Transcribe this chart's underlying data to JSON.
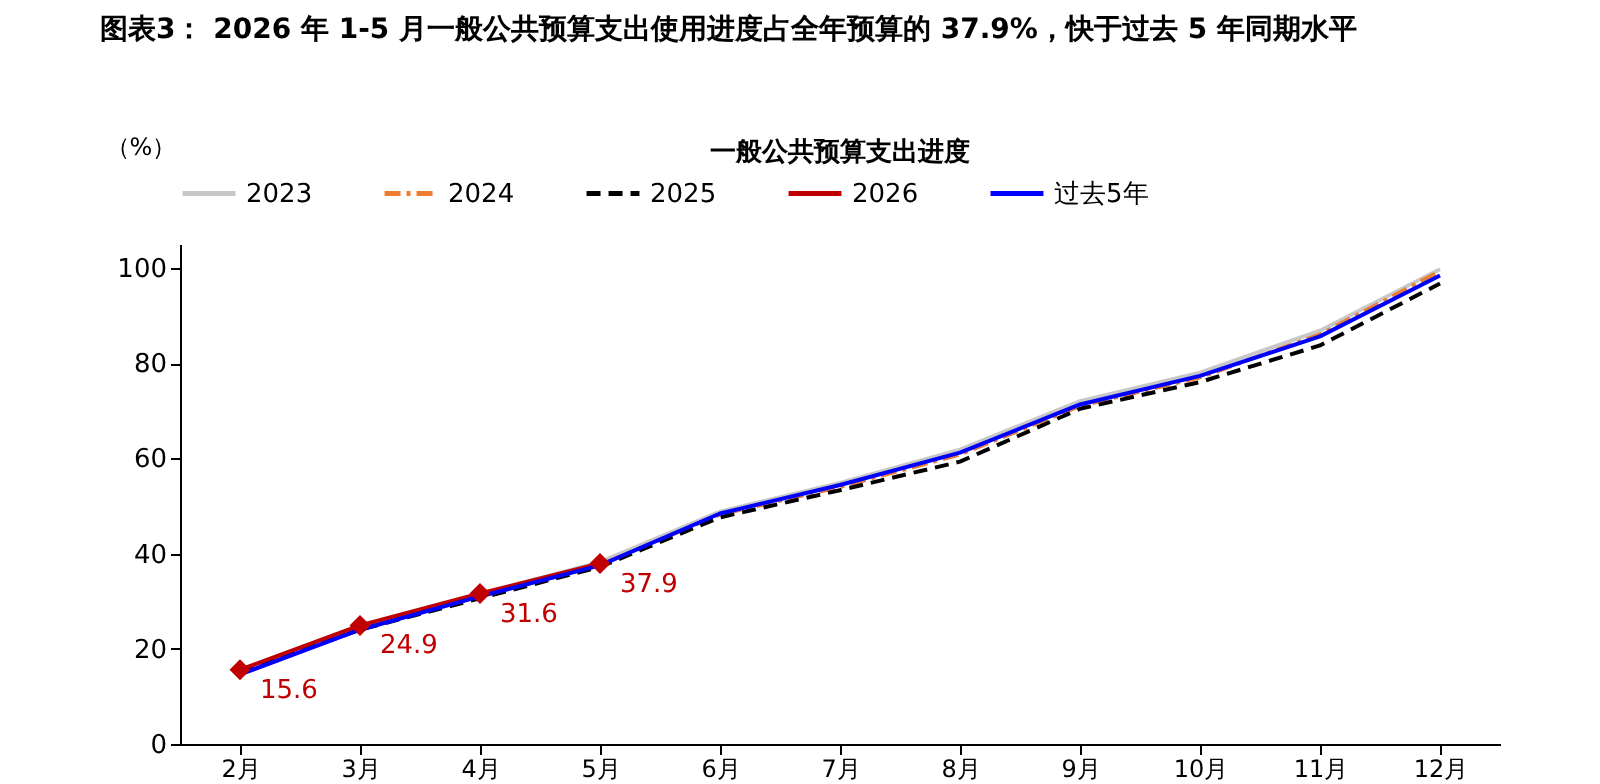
{
  "chart_data": {
    "type": "line",
    "title": "图表3： 2026 年 1-5 月一般公共预算支出使用进度占全年预算的 37.9%，快于过去 5 年同期水平",
    "subtitle": "一般公共预算支出进度",
    "ylabel": "（%）",
    "categories": [
      "2月",
      "3月",
      "4月",
      "5月",
      "6月",
      "7月",
      "8月",
      "9月",
      "10月",
      "11月",
      "12月"
    ],
    "series": [
      {
        "name": "2023",
        "color": "#c8c8c8",
        "line_style": "solid",
        "marker": "none",
        "values": [
          15.5,
          24.8,
          31.5,
          38.2,
          48.8,
          54.8,
          61.8,
          72.0,
          78.0,
          86.8,
          99.7
        ]
      },
      {
        "name": "2024",
        "color": "#ed7d31",
        "line_style": "dashdot",
        "marker": "none",
        "values": [
          15.0,
          24.5,
          31.0,
          37.6,
          48.2,
          54.0,
          60.8,
          71.0,
          77.0,
          86.0,
          99.3
        ]
      },
      {
        "name": "2025",
        "color": "#000000",
        "line_style": "dashed",
        "marker": "none",
        "values": [
          15.0,
          24.0,
          30.6,
          37.2,
          47.6,
          53.3,
          59.3,
          70.4,
          76.0,
          83.7,
          96.7
        ]
      },
      {
        "name": "2026",
        "color": "#c00000",
        "line_style": "solid",
        "marker": "diamond",
        "values": [
          15.6,
          24.9,
          31.6,
          37.9,
          null,
          null,
          null,
          null,
          null,
          null,
          null
        ],
        "value_labels": [
          "15.6",
          "24.9",
          "31.6",
          "37.9",
          null,
          null,
          null,
          null,
          null,
          null,
          null
        ]
      },
      {
        "name": "过去5年",
        "color": "#0000ff",
        "line_style": "solid",
        "marker": "none",
        "values": [
          14.6,
          24.0,
          31.0,
          37.5,
          48.4,
          54.4,
          61.2,
          71.3,
          77.3,
          85.6,
          98.4
        ]
      }
    ],
    "ylim": [
      0,
      105
    ],
    "yticks": [
      0,
      20,
      40,
      60,
      80,
      100
    ],
    "grid": false,
    "legend": "top"
  }
}
